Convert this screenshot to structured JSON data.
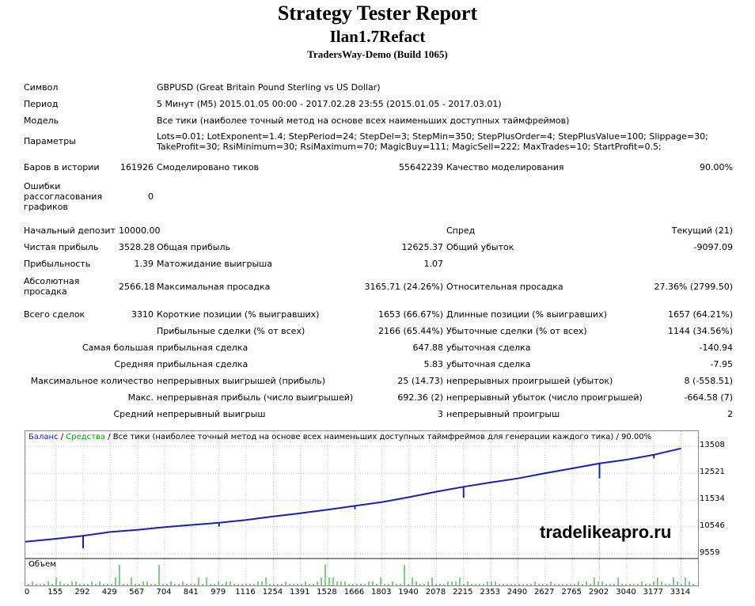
{
  "header": {
    "title": "Strategy Tester Report",
    "expert": "Ilan1.7Refact",
    "server": "TradersWay-Demo (Build 1065)"
  },
  "info": {
    "symbol_label": "Символ",
    "symbol": "GBPUSD (Great Britain Pound Sterling vs US Dollar)",
    "period_label": "Период",
    "period": "5 Минут (M5) 2015.01.05 00:00 - 2017.02.28 23:55 (2015.01.05 - 2017.03.01)",
    "model_label": "Модель",
    "model": "Все тики (наиболее точный метод на основе всех наименьших доступных таймфреймов)",
    "params_label": "Параметры",
    "params_1": "Lots=0.01; LotExponent=1.4; StepPeriod=24; StepDel=3; StepMin=350; StepPlusOrder=4; StepPlusValue=100; Slippage=30;",
    "params_2": "TakeProfit=30; RsiMinimum=30; RsiMaximum=70; MagicBuy=111; MagicSell=222; MaxTrades=10; StartProfit=0.5;"
  },
  "history": {
    "bars_label": "Баров в истории",
    "bars": "161926",
    "ticks_label": "Смоделировано тиков",
    "ticks": "55642239",
    "quality_label": "Качество моделирования",
    "quality": "90.00%",
    "errors_label": "Ошибки рассогласования графиков",
    "errors": "0"
  },
  "results": {
    "deposit_label": "Начальный депозит",
    "deposit": "10000.00",
    "spread_label": "Спред",
    "spread": "Текущий (21)",
    "net_label": "Чистая прибыль",
    "net": "3528.28",
    "gross_profit_label": "Общая прибыль",
    "gross_profit": "12625.37",
    "gross_loss_label": "Общий убыток",
    "gross_loss": "-9097.09",
    "pf_label": "Прибыльность",
    "pf": "1.39",
    "payoff_label": "Матожидание выигрыша",
    "payoff": "1.07",
    "abs_dd_label": "Абсолютная просадка",
    "abs_dd": "2566.18",
    "max_dd_label": "Максимальная просадка",
    "max_dd": "3165.71 (24.26%)",
    "rel_dd_label": "Относительная просадка",
    "rel_dd": "27.36% (2799.50)",
    "total_label": "Всего сделок",
    "total": "3310",
    "short_label": "Короткие позиции (% выигравших)",
    "short": "1653 (66.67%)",
    "long_label": "Длинные позиции (% выигравших)",
    "long": "1657 (64.21%)",
    "profit_trades_label": "Прибыльные сделки (% от всех)",
    "profit_trades": "2166 (65.44%)",
    "loss_trades_label": "Убыточные сделки (% от всех)",
    "loss_trades": "1144 (34.56%)",
    "largest_label": "Самая большая",
    "largest_profit_label": "прибыльная сделка",
    "largest_profit": "647.88",
    "largest_loss_label": "убыточная сделка",
    "largest_loss": "-140.94",
    "avg_label": "Средняя",
    "avg_profit_label": "прибыльная сделка",
    "avg_profit": "5.83",
    "avg_loss_label": "убыточная сделка",
    "avg_loss": "-7.95",
    "maxcount_label": "Максимальное количество",
    "maxcount_wins_label": "непрерывных выигрышей (прибыль)",
    "maxcount_wins": "25 (14.73)",
    "maxcount_losses_label": "непрерывных проигрышей (убыток)",
    "maxcount_losses": "8 (-558.51)",
    "maxprofit_label": "Макс.",
    "maxprofit_wins_label": "непрерывная прибыль (число выигрышей)",
    "maxprofit_wins": "692.36 (2)",
    "maxprofit_losses_label": "непрерывный убыток (число проигрышей)",
    "maxprofit_losses": "-664.58 (7)",
    "avgcons_label": "Средний",
    "avgcons_wins_label": "непрерывный выигрыш",
    "avgcons_wins": "3",
    "avgcons_losses_label": "непрерывный проигрыш",
    "avgcons_losses": "2"
  },
  "legend": {
    "balance": "Баланс",
    "sep1": " / ",
    "equity": "Средства",
    "sep2": " / ",
    "rest": "Все тики (наиболее точный метод на основе всех наименьших доступных таймфреймов для генерации каждого тика) / 90.00%"
  },
  "volume_label": "Объем",
  "watermark": "tradelikeapro.ru",
  "colors": {
    "balance": "#1c1cbf",
    "equity": "#00a000",
    "volume": "#00a000"
  },
  "chart_data": {
    "type": "line",
    "series": [
      {
        "name": "Баланс",
        "x": [
          0,
          155,
          292,
          429,
          567,
          704,
          841,
          979,
          1116,
          1254,
          1391,
          1528,
          1666,
          1803,
          1940,
          2078,
          2215,
          2353,
          2490,
          2627,
          2765,
          2902,
          3040,
          3177,
          3314
        ],
        "y": [
          10000,
          10110,
          10220,
          10360,
          10440,
          10540,
          10620,
          10700,
          10800,
          10930,
          11050,
          11180,
          11320,
          11460,
          11640,
          11840,
          12020,
          12180,
          12330,
          12520,
          12700,
          12880,
          13020,
          13200,
          13430
        ]
      }
    ],
    "drawdown_spikes": [
      {
        "x": 292,
        "y": 9760
      },
      {
        "x": 567,
        "y": 10420
      },
      {
        "x": 979,
        "y": 10560
      },
      {
        "x": 1666,
        "y": 11200
      },
      {
        "x": 2215,
        "y": 11620
      },
      {
        "x": 2902,
        "y": 12330
      },
      {
        "x": 3177,
        "y": 13060
      }
    ],
    "yticks": [
      "13508",
      "12521",
      "11534",
      "10546",
      "9559"
    ],
    "ytick_values": [
      13508,
      12521,
      11534,
      10546,
      9559
    ],
    "ylim": [
      9559,
      13600
    ],
    "xticks": [
      "0",
      "155",
      "292",
      "429",
      "567",
      "704",
      "841",
      "979",
      "1116",
      "1254",
      "1391",
      "1528",
      "1666",
      "1803",
      "1940",
      "2078",
      "2215",
      "2353",
      "2490",
      "2627",
      "2765",
      "2902",
      "3040",
      "3177",
      "3314"
    ],
    "xlim": [
      0,
      3400
    ],
    "grid": true
  }
}
